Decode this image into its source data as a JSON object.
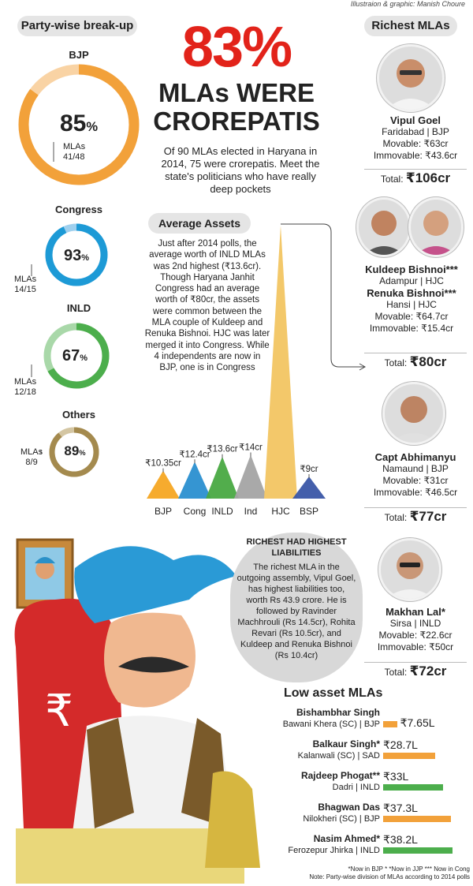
{
  "credit": "Illustraion & graphic: Manish Choure",
  "headline": {
    "big": "83%",
    "line1": "MLAs WERE",
    "line2": "CROREPATIS",
    "intro": "Of 90 MLAs elected in Haryana in 2014, 75 were crorepatis. Meet the state's politicians who have really deep pockets"
  },
  "party_section": {
    "title": "Party-wise break-up",
    "parties": [
      {
        "name": "BJP",
        "pct": "85",
        "mla_label": "MLAs",
        "mla_count": "41/48",
        "fraction": 0.85,
        "color": "#f2a13a",
        "light": "#f9d3a4"
      },
      {
        "name": "Congress",
        "pct": "93",
        "mla_label": "MLAs",
        "mla_count": "14/15",
        "fraction": 0.93,
        "color": "#1d9ad6",
        "light": "#9fd0ee"
      },
      {
        "name": "INLD",
        "pct": "67",
        "mla_label": "MLAs",
        "mla_count": "12/18",
        "fraction": 0.67,
        "color": "#4cae4c",
        "light": "#a9d8a9"
      },
      {
        "name": "Others",
        "pct": "89",
        "mla_label": "MLAs",
        "mla_count": "8/9",
        "fraction": 0.89,
        "color": "#a48a4e",
        "light": "#d4c6a3"
      }
    ]
  },
  "average_assets": {
    "title": "Average Assets",
    "text": "Just after 2014 polls, the average worth of INLD MLAs was 2nd highest (₹13.6cr). Though Haryana Janhit Congress had an average worth of ₹80cr, the assets were common between the MLA couple of Kuldeep and Renuka Bishnoi. HJC was later merged it into Congress. While 4 independents are now in BJP, one is in Congress"
  },
  "chart_data": {
    "type": "bar",
    "title": "Average Assets",
    "categories": [
      "BJP",
      "Cong",
      "INLD",
      "Ind",
      "HJC",
      "BSP"
    ],
    "values": [
      10.35,
      12.4,
      13.6,
      14,
      80,
      9
    ],
    "value_labels": [
      "₹10.35cr",
      "₹12.4cr",
      "₹13.6cr",
      "₹14cr",
      "",
      "₹9cr"
    ],
    "colors": [
      "#f5a623",
      "#2a8fd0",
      "#49a942",
      "#a4a4a4",
      "#f3c86a",
      "#3a56a6"
    ]
  },
  "richest": {
    "title": "Richest MLAs",
    "people": [
      {
        "name": "Vipul Goel",
        "place": "Faridabad | BJP",
        "movable": "Movable: ₹63cr",
        "immovable": "Immovable: ₹43.6cr",
        "total_label": "Total: ",
        "total": "₹106cr"
      },
      {
        "name": "Kuldeep Bishnoi***",
        "place": "Adampur | HJC",
        "name2": "Renuka Bishnoi***",
        "place2": "Hansi | HJC",
        "movable": "Movable: ₹64.7cr",
        "immovable": "Immovable: ₹15.4cr",
        "total_label": "Total: ",
        "total": "₹80cr"
      },
      {
        "name": "Capt Abhimanyu",
        "place": "Namaund | BJP",
        "movable": "Movable: ₹31cr",
        "immovable": "Immovable: ₹46.5cr",
        "total_label": "Total: ",
        "total": "₹77cr"
      },
      {
        "name": "Makhan Lal*",
        "place": "Sirsa | INLD",
        "movable": "Movable: ₹22.6cr",
        "immovable": "Immovable: ₹50cr",
        "total_label": "Total: ",
        "total": "₹72cr"
      }
    ]
  },
  "liabilities": {
    "title": "RICHEST HAD HIGHEST LIABILITIES",
    "text": "The richest MLA in the outgoing assembly, Vipul Goel, has highest liabilities too, worth Rs 43.9 crore. He is followed by Ravinder Machhrouli (Rs 14.5cr), Rohita Revari (Rs 10.5cr), and Kuldeep and Renuka Bishnoi (Rs 10.4cr)"
  },
  "low_asset": {
    "title": "Low asset MLAs",
    "rows": [
      {
        "name": "Bishambhar Singh",
        "constituency": "Bawani Khera (SC) | BJP",
        "value": "₹7.65L",
        "amount": 7.65,
        "color": "#f2a13a"
      },
      {
        "name": "Balkaur Singh*",
        "constituency": "Kalanwali (SC) | SAD",
        "value": "₹28.7L",
        "amount": 28.7,
        "color": "#f2a13a"
      },
      {
        "name": "Rajdeep Phogat**",
        "constituency": "Dadri | INLD",
        "value": "₹33L",
        "amount": 33,
        "color": "#4cae4c"
      },
      {
        "name": "Bhagwan Das",
        "constituency": "Nilokheri (SC) | BJP",
        "value": "₹37.3L",
        "amount": 37.3,
        "color": "#f2a13a"
      },
      {
        "name": "Nasim Ahmed*",
        "constituency": "Ferozepur Jhirka | INLD",
        "value": "₹38.2L",
        "amount": 38.2,
        "color": "#4cae4c"
      }
    ]
  },
  "footnotes": {
    "line1": "*Now in BJP * *Now in JJP *** Now in Cong",
    "line2": "Note: Party-wise division of MLAs according to 2014 polls"
  }
}
